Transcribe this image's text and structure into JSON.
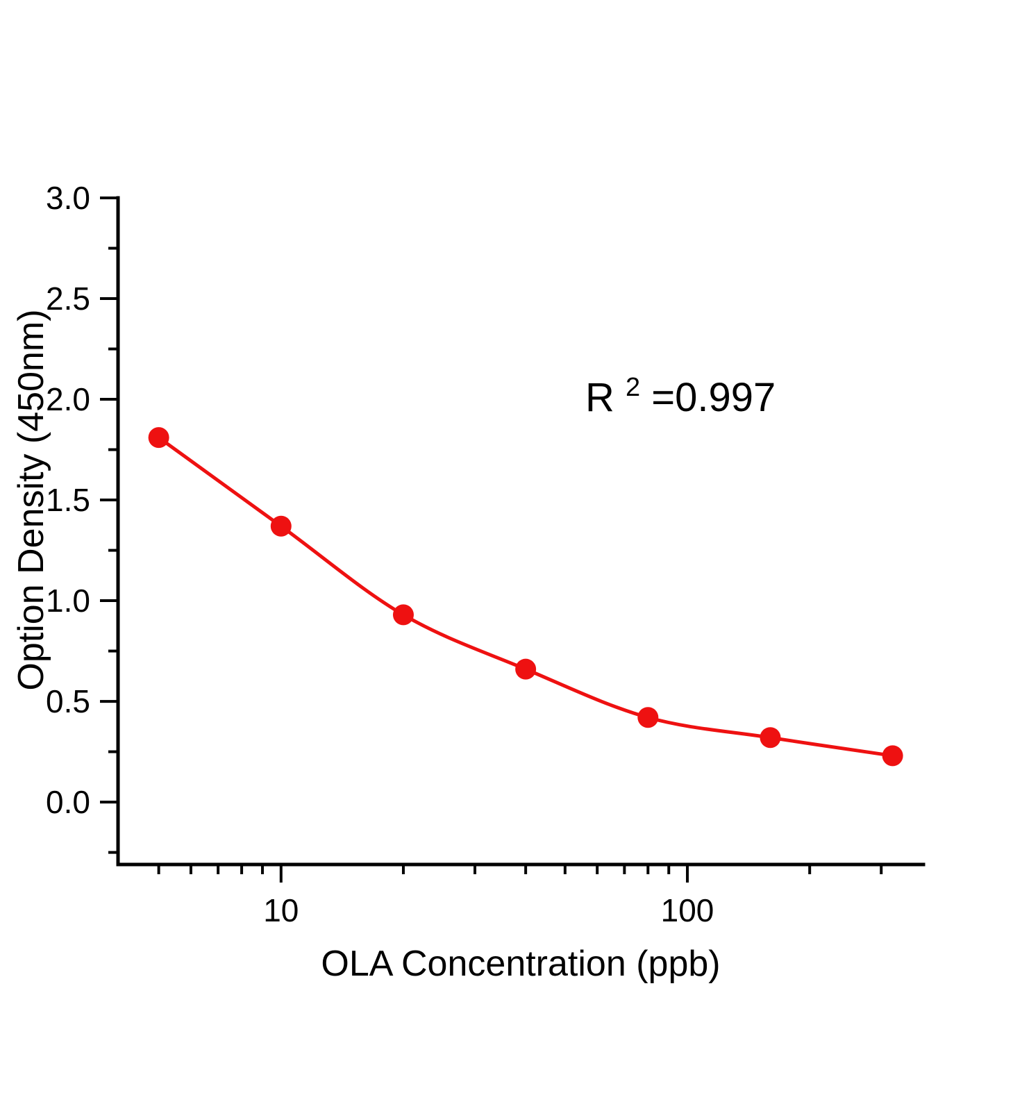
{
  "chart_data": {
    "type": "scatter",
    "title": "",
    "xlabel": "OLA Concentration (ppb)",
    "ylabel": "Option Density (450nm)",
    "x_scale": "log",
    "x": [
      5,
      10,
      20,
      40,
      80,
      160,
      320
    ],
    "y": [
      1.81,
      1.37,
      0.93,
      0.66,
      0.42,
      0.32,
      0.23
    ],
    "xlim": [
      3.97,
      381
    ],
    "ylim": [
      -0.31,
      3.0
    ],
    "x_major_ticks": [
      10,
      100
    ],
    "x_major_tick_labels": [
      "10",
      "100"
    ],
    "x_minor_ticks": [
      5,
      6,
      7,
      8,
      9,
      20,
      30,
      40,
      50,
      60,
      70,
      80,
      90,
      200,
      300
    ],
    "y_major_ticks": [
      0,
      0.5,
      1.0,
      1.5,
      2.0,
      2.5,
      3.0
    ],
    "y_major_tick_labels": [
      "0.0",
      "0.5",
      "1.0",
      "1.5",
      "2.0",
      "2.5",
      "3.0"
    ],
    "y_minor_ticks": [
      -0.25,
      0.25,
      0.75,
      1.25,
      1.75,
      2.25,
      2.75
    ],
    "annotation": {
      "base": "R",
      "sup": "2",
      "rest": "=0.997",
      "text": "R2=0.997",
      "r_squared": 0.997
    },
    "grid": false,
    "legend": null,
    "colors": {
      "series": "#ee1111",
      "axis": "#000000"
    }
  }
}
